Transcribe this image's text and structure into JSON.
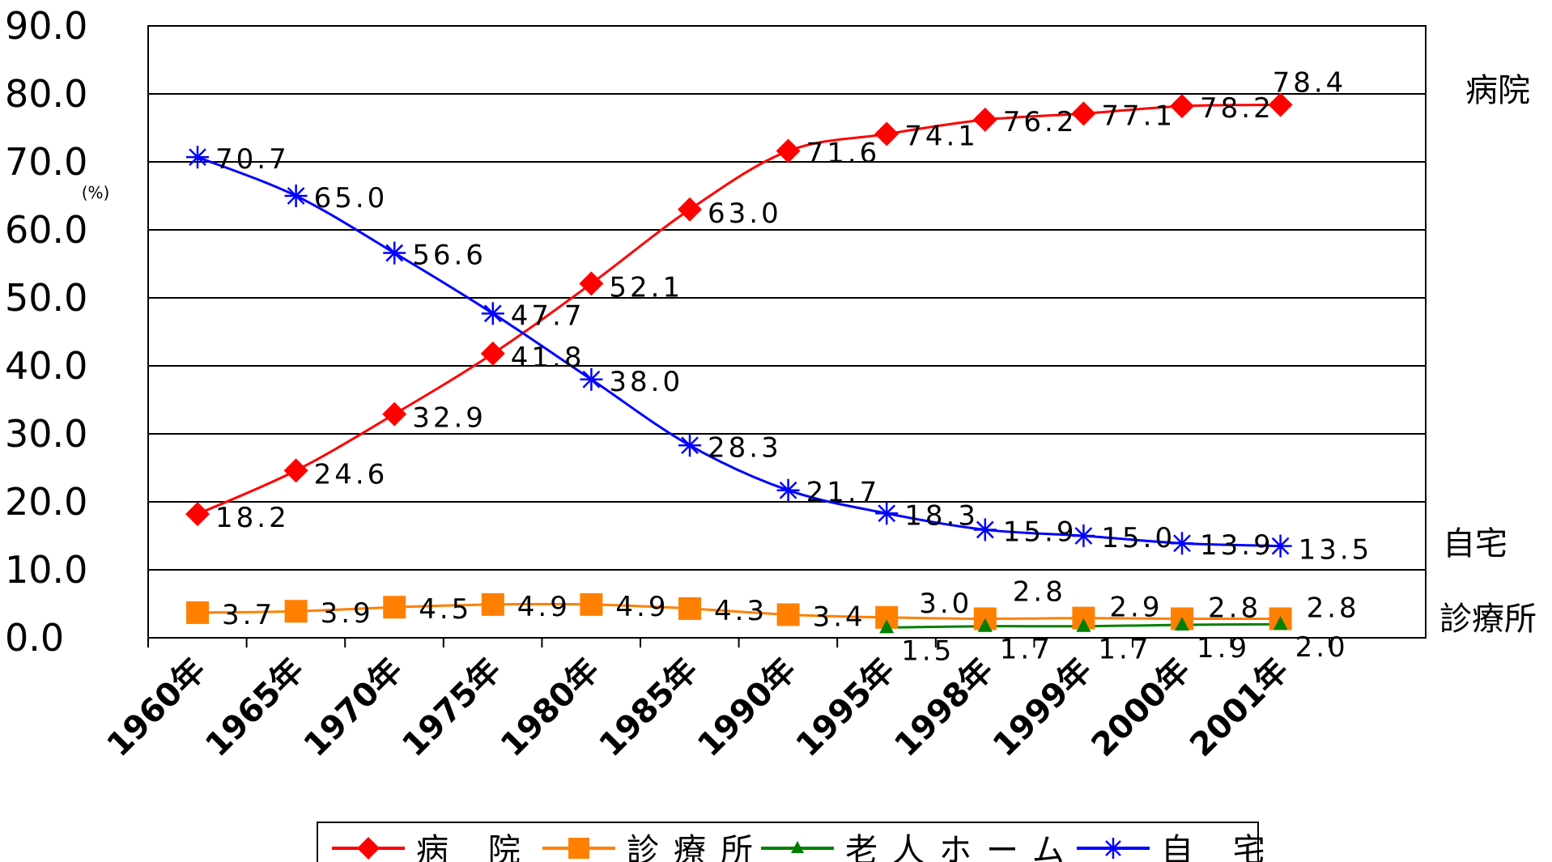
{
  "chart_data": {
    "type": "line",
    "unit_label": "(%)",
    "categories": [
      "1960年",
      "1965年",
      "1970年",
      "1975年",
      "1980年",
      "1985年",
      "1990年",
      "1995年",
      "1998年",
      "1999年",
      "2000年",
      "2001年"
    ],
    "ylim": [
      0,
      90
    ],
    "yticks": [
      "0.0",
      "10.0",
      "20.0",
      "30.0",
      "40.0",
      "50.0",
      "60.0",
      "70.0",
      "80.0",
      "90.0"
    ],
    "grid": true,
    "legend_position": "bottom",
    "series": [
      {
        "key": "hospital",
        "name": "病 院",
        "side_label": "病院",
        "color": "#ff0000",
        "marker": "diamond",
        "values": [
          18.2,
          24.6,
          32.9,
          41.8,
          52.1,
          63.0,
          71.6,
          74.1,
          76.2,
          77.1,
          78.2,
          78.4
        ],
        "labels": [
          "18.2",
          "24.6",
          "32.9",
          "41.8",
          "52.1",
          "63.0",
          "71.6",
          "74.1",
          "76.2",
          "77.1",
          "78.2",
          "78.4"
        ]
      },
      {
        "key": "clinic",
        "name": "診療所",
        "side_label": "診療所",
        "color": "#ff8000",
        "marker": "square",
        "values": [
          3.7,
          3.9,
          4.5,
          4.9,
          4.9,
          4.3,
          3.4,
          3.0,
          2.8,
          2.9,
          2.8,
          2.8
        ],
        "labels": [
          "3.7",
          "3.9",
          "4.5",
          "4.9",
          "4.9",
          "4.3",
          "3.4",
          "3.0",
          "2.8",
          "2.9",
          "2.8",
          "2.8"
        ]
      },
      {
        "key": "nursing",
        "name": "老人ホーム",
        "side_label": "",
        "color": "#008000",
        "marker": "triangle",
        "values": [
          null,
          null,
          null,
          null,
          null,
          null,
          null,
          1.5,
          1.7,
          1.7,
          1.9,
          2.0
        ],
        "labels": [
          "",
          "",
          "",
          "",
          "",
          "",
          "",
          "1.5",
          "1.7",
          "1.7",
          "1.9",
          "2.0"
        ]
      },
      {
        "key": "home",
        "name": "自 宅",
        "side_label": "自宅",
        "color": "#0000ff",
        "marker": "star",
        "values": [
          70.7,
          65.0,
          56.6,
          47.7,
          38.0,
          28.3,
          21.7,
          18.3,
          15.9,
          15.0,
          13.9,
          13.5
        ],
        "labels": [
          "70.7",
          "65.0",
          "56.6",
          "47.7",
          "38.0",
          "28.3",
          "21.7",
          "18.3",
          "15.9",
          "15.0",
          "13.9",
          "13.5"
        ]
      }
    ]
  }
}
